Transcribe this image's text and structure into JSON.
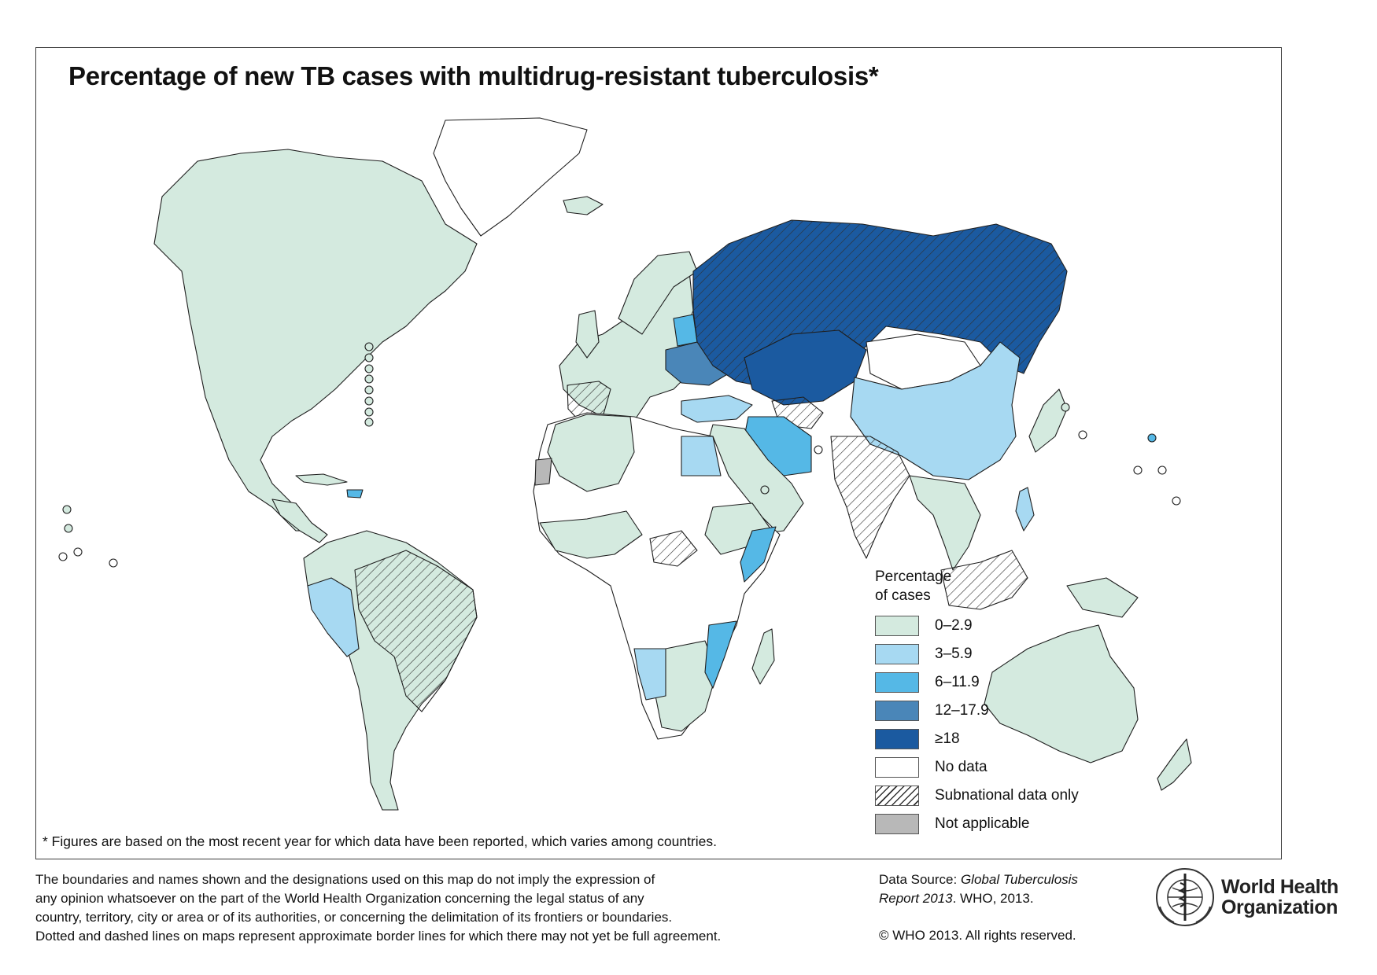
{
  "title": "Percentage of new TB cases with multidrug-resistant tuberculosis*",
  "legend": {
    "title_line1": "Percentage",
    "title_line2": "of cases",
    "items": [
      {
        "label": "0–2.9",
        "color": "#d4eadf"
      },
      {
        "label": "3–5.9",
        "color": "#a7d9f2"
      },
      {
        "label": "6–11.9",
        "color": "#55b8e6"
      },
      {
        "label": "12–17.9",
        "color": "#4a86b8"
      },
      {
        "label": "≥18",
        "color": "#1b5aa0"
      },
      {
        "label": "No data",
        "color": "#ffffff"
      },
      {
        "label": "Subnational data only",
        "pattern": "hatched"
      },
      {
        "label": "Not applicable",
        "color": "#b8b8b8"
      }
    ]
  },
  "footnote": "* Figures are based on the most recent year for which data have been reported, which varies among countries.",
  "disclaimer": {
    "line1": "The boundaries and names shown and the designations used on this map do not imply the expression of",
    "line2": "any opinion whatsoever on the part of the World Health Organization concerning the legal status of any",
    "line3": "country, territory, city or area or of its authorities, or concerning the delimitation of its frontiers or boundaries.",
    "line4": "Dotted and dashed lines on maps represent approximate border lines for which there may not yet be full agreement."
  },
  "source": {
    "prefix": "Data Source: ",
    "title_part1": "Global Tuberculosis",
    "title_part2": "Report 2013",
    "suffix": ". WHO, 2013."
  },
  "copyright": "© WHO 2013. All rights reserved.",
  "logo": {
    "line1": "World Health",
    "line2": "Organization",
    "icon": "who-emblem-icon"
  }
}
